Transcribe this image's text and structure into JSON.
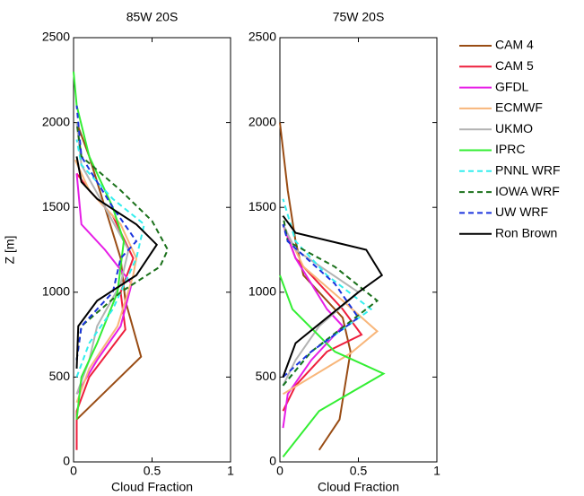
{
  "chart_data": [
    {
      "type": "line",
      "title": "85W 20S",
      "xlabel": "Cloud Fraction",
      "ylabel": "Z [m]",
      "xlim": [
        0,
        1
      ],
      "xticks": [
        0,
        0.5,
        1
      ],
      "ylim": [
        0,
        2500
      ],
      "yticks": [
        0,
        500,
        1000,
        1500,
        2000,
        2500
      ],
      "legend": "outside-right",
      "series": [
        {
          "name": "CAM 4",
          "color": "#994c14",
          "dashed": false,
          "x": [
            0.02,
            0.43,
            0.33,
            0.3,
            0.2,
            0.1,
            0.02
          ],
          "values": [
            250,
            620,
            950,
            1200,
            1500,
            1800,
            2000
          ]
        },
        {
          "name": "CAM 5",
          "color": "#ee1e3c",
          "dashed": false,
          "x": [
            0.02,
            0.02,
            0.1,
            0.33,
            0.3,
            0.38,
            0.25,
            0.1,
            0.02
          ],
          "values": [
            70,
            300,
            500,
            780,
            1000,
            1200,
            1450,
            1600,
            1700
          ]
        },
        {
          "name": "GFDL",
          "color": "#e61ee6",
          "dashed": false,
          "x": [
            0.02,
            0.15,
            0.3,
            0.37,
            0.2,
            0.05,
            0.03,
            0.02
          ],
          "values": [
            400,
            600,
            800,
            1050,
            1250,
            1400,
            1600,
            1700
          ]
        },
        {
          "name": "ECMWF",
          "color": "#f8b67a",
          "dashed": false,
          "x": [
            0.02,
            0.1,
            0.28,
            0.38,
            0.4,
            0.3,
            0.1,
            0.01
          ],
          "values": [
            350,
            550,
            800,
            1100,
            1200,
            1400,
            1600,
            1780
          ]
        },
        {
          "name": "UKMO",
          "color": "#b3b3b3",
          "dashed": false,
          "x": [
            0.02,
            0.1,
            0.15,
            0.3,
            0.35,
            0.2,
            0.05,
            0.02
          ],
          "values": [
            400,
            600,
            800,
            1050,
            1250,
            1500,
            1750,
            2000
          ]
        },
        {
          "name": "IPRC",
          "color": "#33ee33",
          "dashed": false,
          "x": [
            0.02,
            0.05,
            0.15,
            0.28,
            0.32,
            0.25,
            0.1,
            0.02,
            0
          ],
          "values": [
            250,
            500,
            700,
            1000,
            1300,
            1500,
            1800,
            2100,
            2300
          ]
        },
        {
          "name": "PNNL WRF",
          "color": "#33eeee",
          "dashed": true,
          "x": [
            0.02,
            0.1,
            0.25,
            0.4,
            0.45,
            0.25,
            0.05,
            0.02
          ],
          "values": [
            500,
            700,
            900,
            1200,
            1400,
            1550,
            1750,
            1900
          ]
        },
        {
          "name": "IOWA WRF",
          "color": "#1a701a",
          "dashed": true,
          "x": [
            0.02,
            0.05,
            0.3,
            0.55,
            0.6,
            0.5,
            0.3,
            0.05,
            0.02
          ],
          "values": [
            600,
            800,
            1000,
            1150,
            1250,
            1420,
            1600,
            1800,
            2000
          ]
        },
        {
          "name": "UW WRF",
          "color": "#1a33dd",
          "dashed": true,
          "x": [
            0.02,
            0.05,
            0.25,
            0.3,
            0.4,
            0.25,
            0.05,
            0.02
          ],
          "values": [
            600,
            800,
            1000,
            1200,
            1300,
            1500,
            1800,
            2100
          ]
        },
        {
          "name": "Ron Brown",
          "color": "#000000",
          "dashed": false,
          "x": [
            0.02,
            0.03,
            0.15,
            0.4,
            0.53,
            0.4,
            0.15,
            0.05,
            0.02
          ],
          "values": [
            550,
            800,
            950,
            1100,
            1280,
            1400,
            1550,
            1650,
            1800
          ]
        }
      ]
    },
    {
      "type": "line",
      "title": "75W 20S",
      "xlabel": "Cloud Fraction",
      "xlim": [
        0,
        1
      ],
      "xticks": [
        0,
        0.5,
        1
      ],
      "ylim": [
        0,
        2500
      ],
      "yticks": [
        0,
        500,
        1000,
        1500,
        2000,
        2500
      ],
      "series": [
        {
          "color": "#994c14",
          "dashed": false,
          "x": [
            0.25,
            0.38,
            0.45,
            0.4,
            0.15,
            0.1,
            0.05,
            0
          ],
          "values": [
            70,
            250,
            650,
            850,
            1100,
            1300,
            1600,
            2000
          ]
        },
        {
          "color": "#ee1e3c",
          "dashed": false,
          "x": [
            0.02,
            0.1,
            0.3,
            0.52,
            0.4,
            0.1,
            0.02
          ],
          "values": [
            300,
            450,
            650,
            750,
            900,
            1200,
            1400
          ]
        },
        {
          "color": "#e61ee6",
          "dashed": false,
          "x": [
            0.02,
            0.05,
            0.2,
            0.4,
            0.3,
            0.1,
            0.02
          ],
          "values": [
            200,
            400,
            600,
            800,
            900,
            1200,
            1400
          ]
        },
        {
          "color": "#f8b67a",
          "dashed": false,
          "x": [
            0.02,
            0.45,
            0.62,
            0.4,
            0.15,
            0.02
          ],
          "values": [
            400,
            640,
            770,
            950,
            1150,
            1400
          ]
        },
        {
          "color": "#b3b3b3",
          "dashed": false,
          "x": [
            0.02,
            0.1,
            0.25,
            0.5,
            0.1,
            0.02
          ],
          "values": [
            450,
            600,
            800,
            1000,
            1250,
            1400
          ]
        },
        {
          "color": "#33ee33",
          "dashed": false,
          "x": [
            0.02,
            0.25,
            0.66,
            0.35,
            0.08,
            0
          ],
          "values": [
            30,
            300,
            520,
            650,
            900,
            1100
          ]
        },
        {
          "color": "#33eeee",
          "dashed": true,
          "x": [
            0.02,
            0.2,
            0.58,
            0.3,
            0.1,
            0.02
          ],
          "values": [
            450,
            650,
            900,
            1100,
            1300,
            1550
          ]
        },
        {
          "color": "#1a701a",
          "dashed": true,
          "x": [
            0.02,
            0.2,
            0.62,
            0.35,
            0.05,
            0.02
          ],
          "values": [
            450,
            650,
            950,
            1150,
            1300,
            1450
          ]
        },
        {
          "color": "#1a33dd",
          "dashed": true,
          "x": [
            0.02,
            0.2,
            0.5,
            0.35,
            0.05,
            0.02
          ],
          "values": [
            500,
            650,
            850,
            1050,
            1300,
            1400
          ]
        },
        {
          "color": "#000000",
          "dashed": false,
          "x": [
            0.02,
            0.1,
            0.3,
            0.5,
            0.65,
            0.55,
            0.1,
            0.02
          ],
          "values": [
            500,
            700,
            850,
            1000,
            1100,
            1250,
            1350,
            1450
          ]
        }
      ]
    }
  ]
}
